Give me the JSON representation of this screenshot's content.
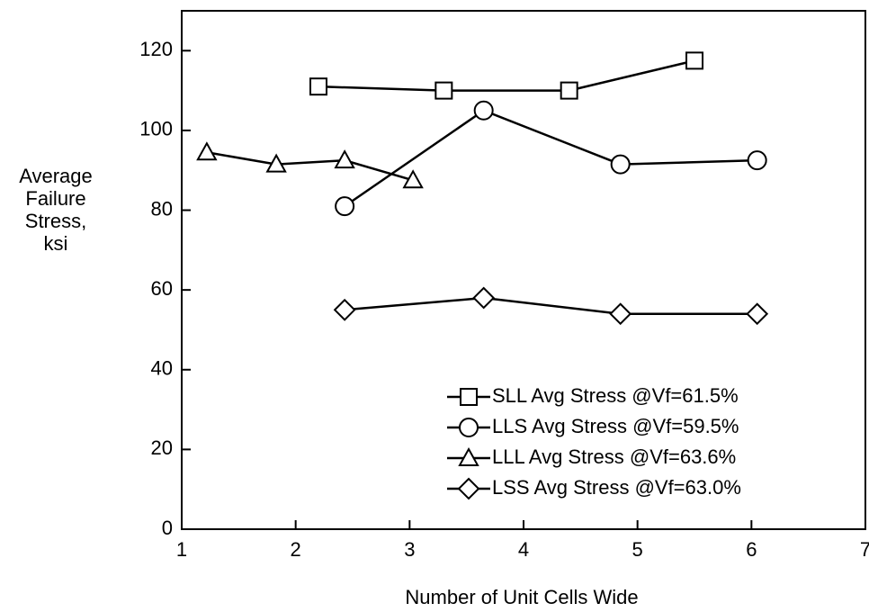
{
  "chart_data": {
    "type": "line",
    "xlabel": "Number of Unit Cells Wide",
    "ylabel": [
      "Average",
      "Failure",
      "Stress,",
      "ksi"
    ],
    "xlim": [
      1,
      7
    ],
    "xticks": [
      1,
      2,
      3,
      4,
      5,
      6,
      7
    ],
    "ylim": [
      0,
      130
    ],
    "yticks": [
      0,
      20,
      40,
      60,
      80,
      100,
      120
    ],
    "legend": "lower right",
    "series": [
      {
        "name": "SLL Avg Stress @Vf=61.5%",
        "color": "#000000",
        "marker": "square",
        "x": [
          2.2,
          3.3,
          4.4,
          5.5
        ],
        "values": [
          111,
          110,
          110,
          117.5
        ]
      },
      {
        "name": "LLS Avg Stress @Vf=59.5%",
        "color": "#000000",
        "marker": "circle",
        "x": [
          2.43,
          3.65,
          4.85,
          6.05
        ],
        "values": [
          81,
          105,
          91.5,
          92.5
        ]
      },
      {
        "name": "LLL Avg Stress @Vf=63.6%",
        "color": "#000000",
        "marker": "triangle",
        "x": [
          1.22,
          1.83,
          2.43,
          3.03
        ],
        "values": [
          94.5,
          91.5,
          92.5,
          87.5
        ]
      },
      {
        "name": "LSS Avg Stress @Vf=63.0%",
        "color": "#000000",
        "marker": "diamond",
        "x": [
          2.43,
          3.65,
          4.85,
          6.05
        ],
        "values": [
          55,
          58,
          54,
          54
        ]
      }
    ]
  }
}
